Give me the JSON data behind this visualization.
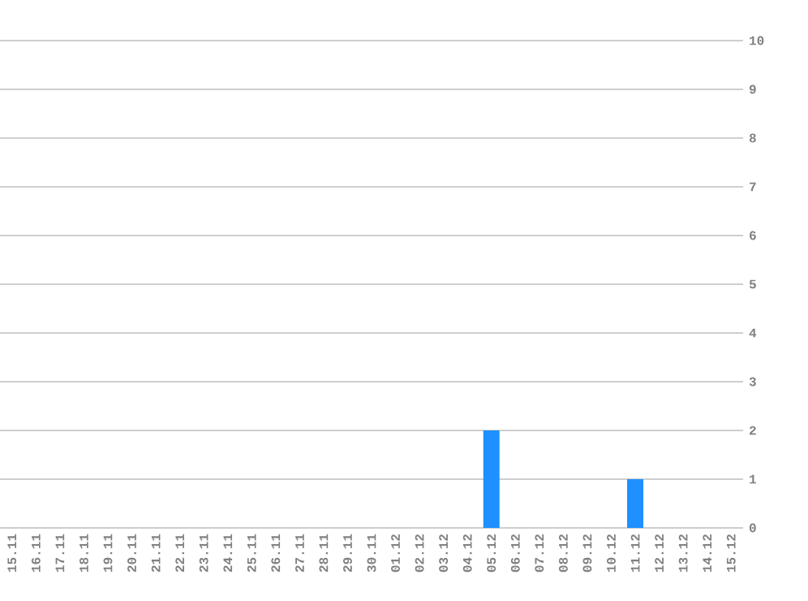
{
  "chart_data": {
    "type": "bar",
    "categories": [
      "15.11",
      "16.11",
      "17.11",
      "18.11",
      "19.11",
      "20.11",
      "21.11",
      "22.11",
      "23.11",
      "24.11",
      "25.11",
      "26.11",
      "27.11",
      "28.11",
      "29.11",
      "30.11",
      "01.12",
      "02.12",
      "03.12",
      "04.12",
      "05.12",
      "06.12",
      "07.12",
      "08.12",
      "09.12",
      "10.12",
      "11.12",
      "12.12",
      "13.12",
      "14.12",
      "15.12"
    ],
    "values": [
      0,
      0,
      0,
      0,
      0,
      0,
      0,
      0,
      0,
      0,
      0,
      0,
      0,
      0,
      0,
      0,
      0,
      0,
      0,
      0,
      2,
      0,
      0,
      0,
      0,
      0,
      1,
      0,
      0,
      0,
      0
    ],
    "color": "#1e90ff",
    "ylim": [
      0,
      10
    ],
    "yticks": [
      0,
      1,
      2,
      3,
      4,
      5,
      6,
      7,
      8,
      9,
      10
    ],
    "grid": "y"
  }
}
